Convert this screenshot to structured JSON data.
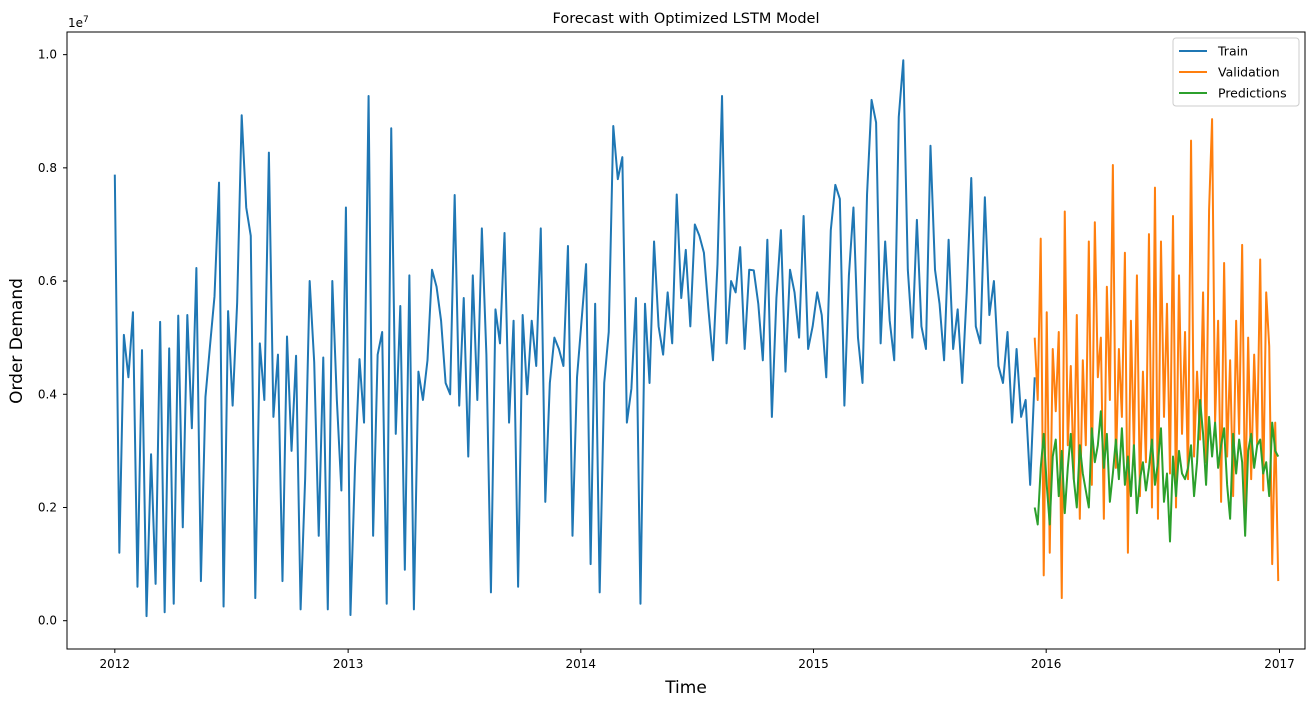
{
  "chart_data": {
    "type": "line",
    "title": "Forecast with Optimized LSTM Model",
    "xlabel": "Time",
    "ylabel": "Order Demand",
    "y_offset_label": "1e7",
    "y_scale": 10000000,
    "xlim": [
      "2011-10-18",
      "2017-02-10"
    ],
    "ylim": [
      -500000,
      10400000
    ],
    "x_ticks": [
      "2012-01-01",
      "2013-01-01",
      "2014-01-01",
      "2015-01-01",
      "2016-01-01",
      "2017-01-01"
    ],
    "x_tick_labels": [
      "2012",
      "2013",
      "2014",
      "2015",
      "2016",
      "2017"
    ],
    "y_ticks": [
      0,
      2000000,
      4000000,
      6000000,
      8000000,
      10000000
    ],
    "y_tick_labels": [
      "0.0",
      "0.2",
      "0.4",
      "0.6",
      "0.8",
      "1.0"
    ],
    "grid": false,
    "legend_position": "top-right",
    "series": [
      {
        "name": "Train",
        "color": "#1f77b4",
        "x_start": "2012-01-01",
        "x_end": "2015-12-14",
        "style": "volatile daily demand between 0 and 1e7",
        "values": [
          7880000,
          1200000,
          5050000,
          4300000,
          5450000,
          600000,
          4780000,
          80000,
          2940000,
          650000,
          5280000,
          150000,
          4810000,
          300000,
          5390000,
          1650000,
          5400000,
          3400000,
          6230000,
          700000,
          3950000,
          4850000,
          5730000,
          7740000,
          250000,
          5470000,
          3800000,
          5620000,
          8930000,
          7300000,
          6800000,
          400000,
          4900000,
          3900000,
          8270000,
          3600000,
          4700000,
          700000,
          5020000,
          3000000,
          4680000,
          200000,
          2500000,
          6000000,
          4570000,
          1500000,
          4650000,
          200000,
          6000000,
          3900000,
          2300000,
          7300000,
          100000,
          2700000,
          4620000,
          3500000,
          9270000,
          1500000,
          4700000,
          5100000,
          300000,
          8700000,
          3300000,
          5560000,
          900000,
          6100000,
          200000,
          4400000,
          3900000,
          4600000,
          6200000,
          5900000,
          5300000,
          4200000,
          4000000,
          7520000,
          3800000,
          5700000,
          2900000,
          6100000,
          3900000,
          6930000,
          4700000,
          500000,
          5500000,
          4900000,
          6850000,
          3500000,
          5300000,
          600000,
          5400000,
          4000000,
          5300000,
          4500000,
          6930000,
          2100000,
          4200000,
          5000000,
          4800000,
          4500000,
          6620000,
          1500000,
          4300000,
          5300000,
          6300000,
          1000000,
          5600000,
          500000,
          4200000,
          5100000,
          8740000,
          7800000,
          8190000,
          3500000,
          4100000,
          5700000,
          300000,
          5600000,
          4200000,
          6700000,
          5200000,
          4700000,
          5800000,
          4900000,
          7530000,
          5700000,
          6550000,
          5200000,
          7000000,
          6800000,
          6500000,
          5500000,
          4600000,
          6300000,
          9270000,
          4900000,
          6000000,
          5800000,
          6600000,
          4800000,
          6200000,
          6190000,
          5600000,
          4600000,
          6730000,
          3600000,
          5700000,
          6900000,
          4400000,
          6200000,
          5800000,
          5000000,
          7150000,
          4800000,
          5200000,
          5800000,
          5400000,
          4300000,
          6900000,
          7700000,
          7450000,
          3800000,
          6100000,
          7300000,
          5000000,
          4200000,
          7530000,
          9200000,
          8800000,
          4900000,
          6700000,
          5300000,
          4600000,
          8900000,
          9900000,
          6200000,
          5000000,
          7080000,
          5200000,
          4800000,
          8390000,
          6200000,
          5600000,
          4600000,
          6730000,
          4800000,
          5500000,
          4200000,
          5800000,
          7820000,
          5200000,
          4900000,
          7480000,
          5400000,
          6000000,
          4500000,
          4200000,
          5100000,
          3500000,
          4800000,
          3600000,
          3900000,
          2400000,
          4300000
        ]
      },
      {
        "name": "Validation",
        "color": "#ff7f0e",
        "x_start": "2015-12-14",
        "x_end": "2016-12-30",
        "style": "volatile daily demand between 0 and 9e6",
        "values": [
          5000000,
          3900000,
          6750000,
          800000,
          5450000,
          1200000,
          4800000,
          3700000,
          5100000,
          400000,
          7230000,
          3100000,
          4500000,
          2500000,
          5400000,
          1800000,
          4600000,
          3100000,
          6700000,
          2400000,
          7040000,
          4300000,
          5000000,
          1800000,
          5900000,
          3900000,
          8050000,
          2700000,
          4800000,
          3600000,
          6500000,
          1200000,
          5300000,
          3000000,
          6100000,
          2200000,
          4400000,
          2800000,
          6830000,
          2000000,
          7650000,
          1800000,
          6700000,
          3600000,
          5600000,
          2600000,
          7150000,
          2000000,
          6100000,
          3300000,
          5100000,
          2500000,
          8480000,
          2900000,
          4400000,
          3200000,
          5800000,
          2800000,
          7260000,
          8860000,
          3500000,
          5300000,
          2100000,
          6320000,
          2900000,
          4600000,
          2200000,
          5300000,
          3300000,
          6640000,
          1900000,
          5000000,
          2500000,
          4700000,
          3100000,
          6380000,
          2300000,
          5800000,
          4850000,
          1000000,
          3500000,
          700000
        ]
      },
      {
        "name": "Predictions",
        "color": "#2ca02c",
        "x_start": "2015-12-14",
        "x_end": "2016-12-30",
        "style": "smoothed forecast between 1.3e6 and 3.9e6",
        "values": [
          2000000,
          1700000,
          2700000,
          3300000,
          2400000,
          1700000,
          2900000,
          3200000,
          2200000,
          3000000,
          1900000,
          2700000,
          3300000,
          2500000,
          2000000,
          3100000,
          2600000,
          2300000,
          2000000,
          3400000,
          2800000,
          3100000,
          3700000,
          2700000,
          3300000,
          2100000,
          2600000,
          3200000,
          2500000,
          3400000,
          2400000,
          2900000,
          2200000,
          3100000,
          1900000,
          2500000,
          2800000,
          2300000,
          2700000,
          3200000,
          2400000,
          2800000,
          3400000,
          2100000,
          2600000,
          1400000,
          2900000,
          2200000,
          3000000,
          2600000,
          2500000,
          2700000,
          3100000,
          2200000,
          2800000,
          3900000,
          3300000,
          2400000,
          3600000,
          2900000,
          3500000,
          2700000,
          3100000,
          3400000,
          2400000,
          1800000,
          3300000,
          2600000,
          3200000,
          2800000,
          1500000,
          3000000,
          3300000,
          2700000,
          3100000,
          3200000,
          2600000,
          2800000,
          2200000,
          3500000,
          3000000,
          2900000
        ]
      }
    ]
  }
}
